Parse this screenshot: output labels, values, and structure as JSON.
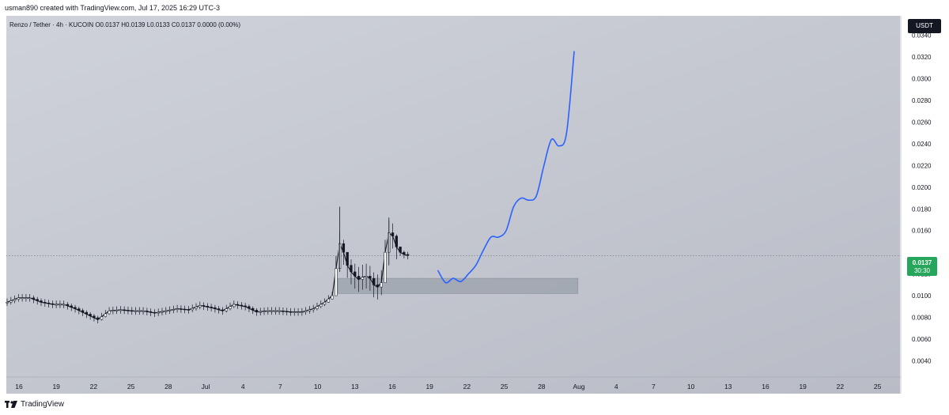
{
  "header": {
    "caption": "usman890 created with TradingView.com, Jul 17, 2025 16:29 UTC-3",
    "symbol_line": "Renzo / Tether · 4h · KUCOIN  O0.0137  H0.0139  L0.0133  C0.0137  0.0000 (0.00%)",
    "currency_button": "USDT"
  },
  "price_badge": {
    "price": "0.0137",
    "countdown": "30:30",
    "color": "#26a65b"
  },
  "footer": {
    "brand": "TradingView",
    "logo_icon": "tradingview-logo-icon"
  },
  "colors": {
    "projection": "#2962ff",
    "candle": "#131722",
    "zone": "#9aa0aa"
  },
  "chart_data": {
    "type": "candlestick",
    "y_ticks": [
      "0.0340",
      "0.0320",
      "0.0300",
      "0.0280",
      "0.0260",
      "0.0240",
      "0.0220",
      "0.0200",
      "0.0180",
      "0.0160",
      "0.0120",
      "0.0100",
      "0.0080",
      "0.0060",
      "0.0040"
    ],
    "x_ticks": [
      "16",
      "19",
      "22",
      "25",
      "28",
      "Jul",
      "4",
      "7",
      "10",
      "13",
      "16",
      "19",
      "22",
      "25",
      "28",
      "Aug",
      "4",
      "7",
      "10",
      "13",
      "16",
      "19",
      "22",
      "25"
    ],
    "ylim": [
      0.0025,
      0.0358
    ],
    "current_price": 0.0137,
    "price_line": [
      [
        0,
        0.0094
      ],
      [
        3,
        0.0098
      ],
      [
        6,
        0.0098
      ],
      [
        9,
        0.0094
      ],
      [
        12,
        0.0092
      ],
      [
        15,
        0.0092
      ],
      [
        18,
        0.0088
      ],
      [
        21,
        0.0083
      ],
      [
        24,
        0.0078
      ],
      [
        27,
        0.0086
      ],
      [
        30,
        0.0087
      ],
      [
        33,
        0.0086
      ],
      [
        36,
        0.0086
      ],
      [
        39,
        0.0084
      ],
      [
        42,
        0.0086
      ],
      [
        45,
        0.0088
      ],
      [
        48,
        0.0087
      ],
      [
        51,
        0.0091
      ],
      [
        54,
        0.0089
      ],
      [
        57,
        0.0086
      ],
      [
        60,
        0.0092
      ],
      [
        63,
        0.009
      ],
      [
        66,
        0.0085
      ],
      [
        69,
        0.0086
      ],
      [
        72,
        0.0086
      ],
      [
        75,
        0.0085
      ],
      [
        78,
        0.0085
      ],
      [
        81,
        0.0088
      ],
      [
        84,
        0.0094
      ],
      [
        86,
        0.01
      ],
      [
        87,
        0.0125
      ],
      [
        88,
        0.0148
      ],
      [
        89,
        0.014
      ],
      [
        90,
        0.0128
      ],
      [
        91,
        0.0122
      ],
      [
        92,
        0.0118
      ],
      [
        93,
        0.0115
      ],
      [
        94,
        0.0117
      ],
      [
        95,
        0.0118
      ],
      [
        96,
        0.0116
      ],
      [
        97,
        0.011
      ],
      [
        98,
        0.0108
      ],
      [
        99,
        0.0112
      ],
      [
        100,
        0.014
      ],
      [
        101,
        0.0158
      ],
      [
        102,
        0.0155
      ],
      [
        103,
        0.0145
      ],
      [
        104,
        0.014
      ],
      [
        105,
        0.0138
      ],
      [
        106,
        0.0137
      ]
    ],
    "demand_zone": {
      "x_start": 87.5,
      "x_end": 151,
      "y_low": 0.0102,
      "y_high": 0.0116
    },
    "projection": [
      [
        114,
        0.0123
      ],
      [
        116,
        0.0112
      ],
      [
        118,
        0.0116
      ],
      [
        120,
        0.0113
      ],
      [
        122,
        0.012
      ],
      [
        124,
        0.0128
      ],
      [
        126,
        0.0142
      ],
      [
        128,
        0.0154
      ],
      [
        130,
        0.0154
      ],
      [
        132,
        0.016
      ],
      [
        134,
        0.0182
      ],
      [
        136,
        0.019
      ],
      [
        138,
        0.0188
      ],
      [
        140,
        0.0192
      ],
      [
        142,
        0.022
      ],
      [
        144,
        0.0244
      ],
      [
        146,
        0.0238
      ],
      [
        148,
        0.025
      ],
      [
        150,
        0.0325
      ]
    ]
  }
}
